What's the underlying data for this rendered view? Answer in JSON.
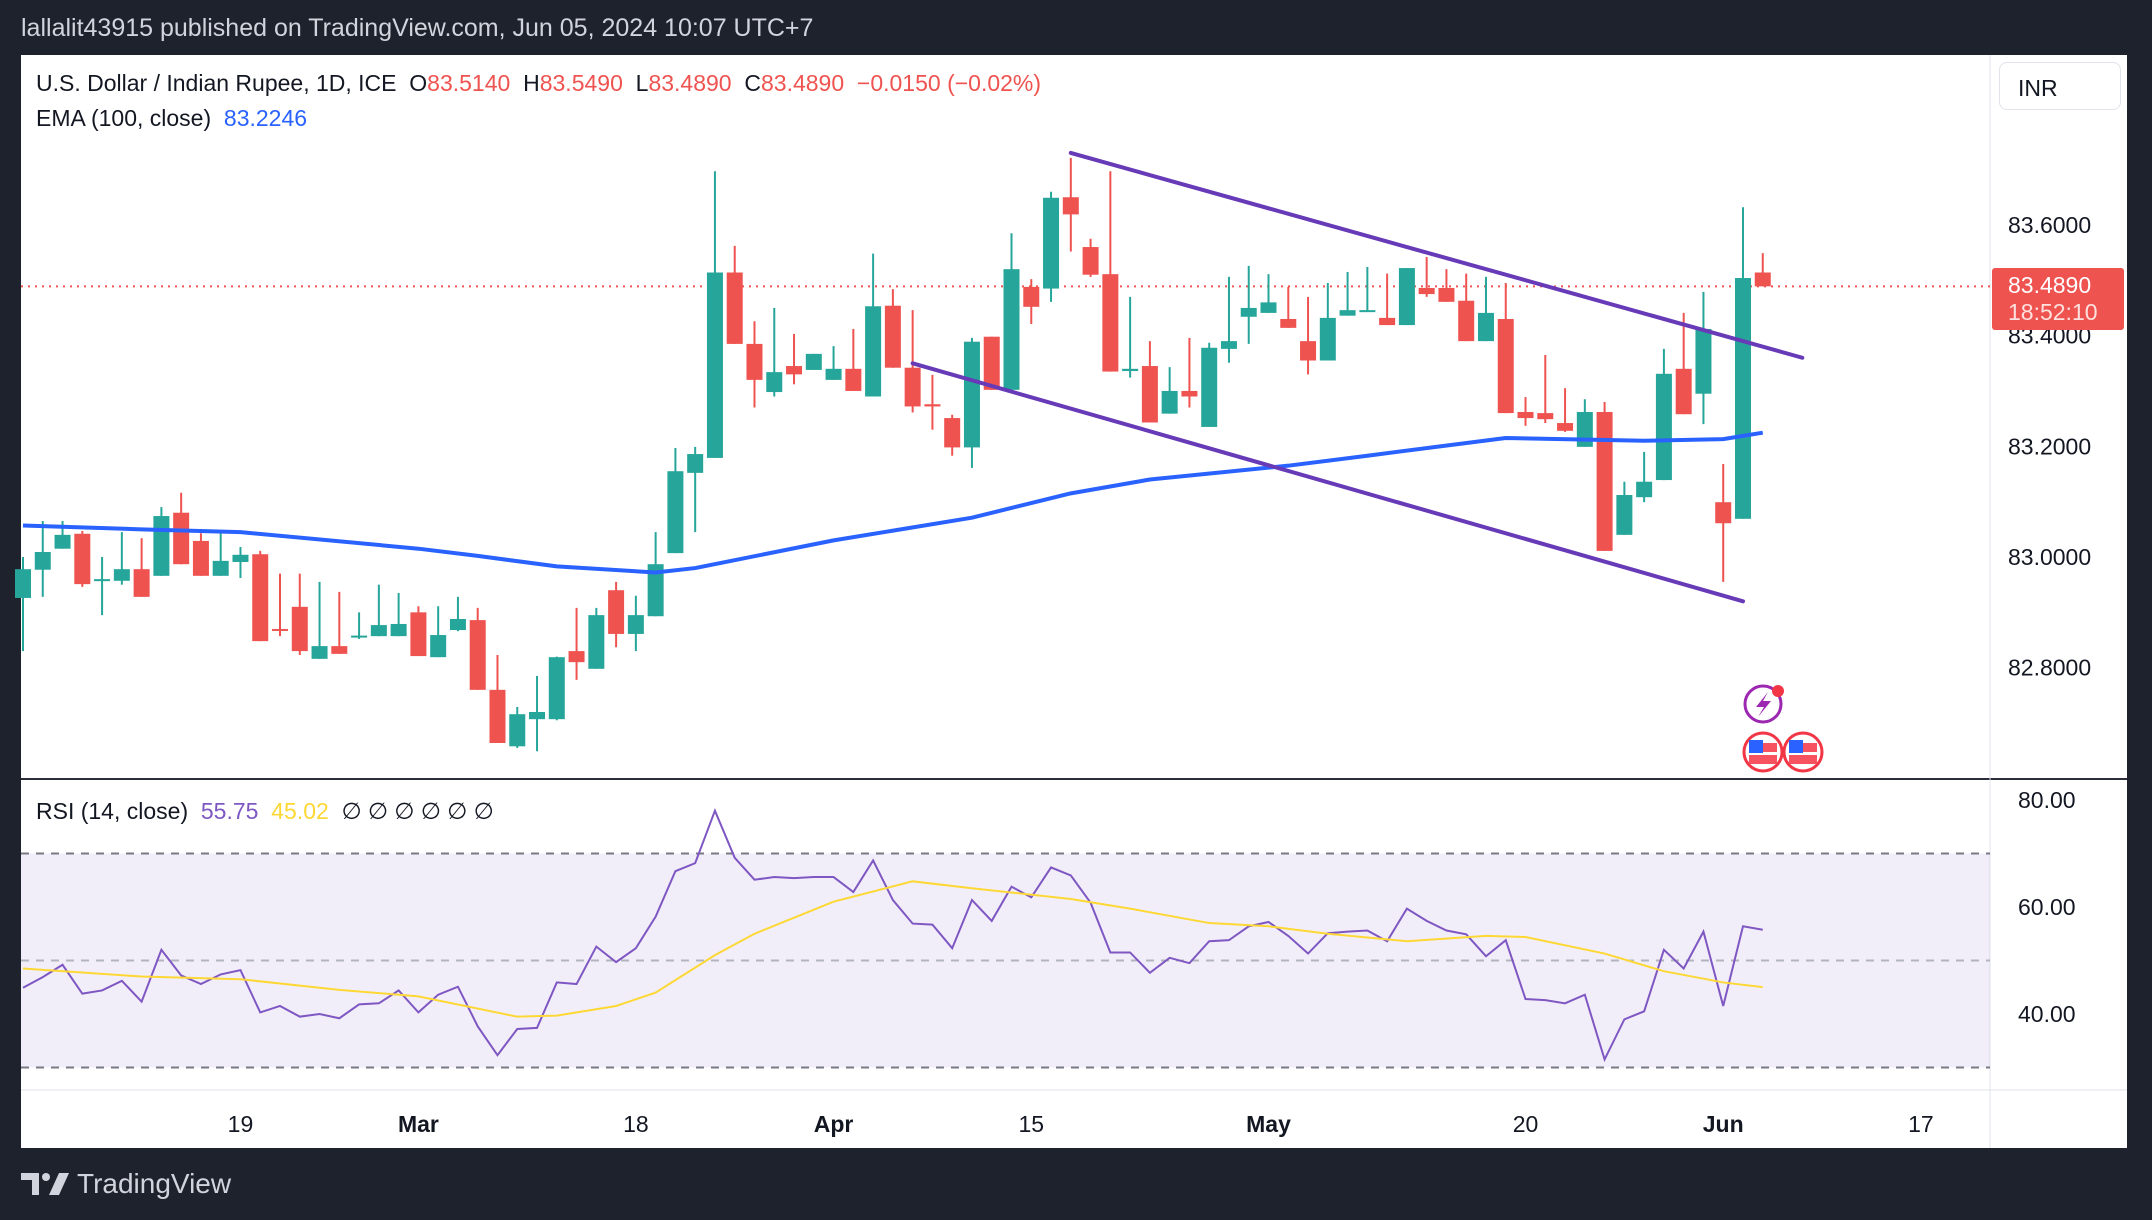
{
  "header": {
    "published": "lallalit43915 published on TradingView.com, Jun 05, 2024 10:07 UTC+7"
  },
  "legend": {
    "symbol": "U.S. Dollar / Indian Rupee, 1D, ICE",
    "o_label": "O",
    "o": "83.5140",
    "h_label": "H",
    "h": "83.5490",
    "l_label": "L",
    "l": "83.4890",
    "c_label": "C",
    "c": "83.4890",
    "change": "−0.0150 (−0.02%)",
    "ema_label": "EMA (100, close)",
    "ema_value": "83.2246",
    "rsi_label": "RSI (14, close)",
    "rsi_value": "55.75",
    "rsi_ma_value": "45.02",
    "rsi_na": "∅ ∅ ∅ ∅ ∅ ∅"
  },
  "currency_button": "INR",
  "price_tag": {
    "price": "83.4890",
    "countdown": "18:52:10"
  },
  "footer": {
    "brand": "TradingView"
  },
  "colors": {
    "up": "#26a69a",
    "down": "#ef5350",
    "ema": "#2962ff",
    "trendline": "#673ab7",
    "rsi": "#7e57c2",
    "rsi_ma": "#fdd835",
    "last_price": "#ef5350"
  },
  "icons": [
    "lightning-event-icon",
    "us-flag-icon",
    "us-flag-icon"
  ],
  "chart_data": {
    "type": "candlestick",
    "last_price": 83.489,
    "price_ticks": [
      "83.6000",
      "83.4000",
      "83.2000",
      "83.0000",
      "82.8000"
    ],
    "price_tick_values": [
      83.6,
      83.4,
      83.2,
      83.0,
      82.8
    ],
    "x_ticks": [
      {
        "label": "19",
        "date": "2024-02-19",
        "bold": false
      },
      {
        "label": "Mar",
        "date": "2024-03-01",
        "bold": true
      },
      {
        "label": "18",
        "date": "2024-03-18",
        "bold": false
      },
      {
        "label": "Apr",
        "date": "2024-04-01",
        "bold": true
      },
      {
        "label": "15",
        "date": "2024-04-15",
        "bold": false
      },
      {
        "label": "May",
        "date": "2024-05-01",
        "bold": true
      },
      {
        "label": "20",
        "date": "2024-05-20",
        "bold": false
      },
      {
        "label": "Jun",
        "date": "2024-06-03",
        "bold": true
      },
      {
        "label": "17",
        "date": "2024-06-17",
        "bold": false
      }
    ],
    "candles_columns": [
      "date",
      "open",
      "high",
      "low",
      "close"
    ],
    "candles": [
      [
        "2024-02-02",
        82.926,
        83.0,
        82.83,
        82.978
      ],
      [
        "2024-02-05",
        82.977,
        83.065,
        82.928,
        83.009
      ],
      [
        "2024-02-06",
        83.015,
        83.065,
        83.015,
        83.04
      ],
      [
        "2024-02-07",
        83.042,
        83.047,
        82.946,
        82.951
      ],
      [
        "2024-02-08",
        82.96,
        83.0,
        82.895,
        82.96
      ],
      [
        "2024-02-09",
        82.957,
        83.045,
        82.95,
        82.978
      ],
      [
        "2024-02-12",
        82.978,
        83.034,
        82.928,
        82.928
      ],
      [
        "2024-02-13",
        82.966,
        83.09,
        82.966,
        83.074
      ],
      [
        "2024-02-14",
        83.08,
        83.116,
        82.987,
        82.987
      ],
      [
        "2024-02-15",
        83.029,
        83.043,
        82.966,
        82.966
      ],
      [
        "2024-02-16",
        82.966,
        83.043,
        82.966,
        82.993
      ],
      [
        "2024-02-19",
        82.991,
        83.018,
        82.962,
        83.004
      ],
      [
        "2024-02-20",
        83.005,
        83.011,
        82.848,
        82.848
      ],
      [
        "2024-02-21",
        82.87,
        82.97,
        82.857,
        82.869
      ],
      [
        "2024-02-22",
        82.91,
        82.97,
        82.823,
        82.83
      ],
      [
        "2024-02-23",
        82.816,
        82.955,
        82.816,
        82.839
      ],
      [
        "2024-02-26",
        82.839,
        82.937,
        82.825,
        82.825
      ],
      [
        "2024-02-27",
        82.856,
        82.9,
        82.852,
        82.858
      ],
      [
        "2024-02-28",
        82.857,
        82.95,
        82.857,
        82.877
      ],
      [
        "2024-02-29",
        82.857,
        82.935,
        82.857,
        82.879
      ],
      [
        "2024-03-01",
        82.9,
        82.911,
        82.821,
        82.821
      ],
      [
        "2024-03-04",
        82.819,
        82.911,
        82.819,
        82.859
      ],
      [
        "2024-03-05",
        82.868,
        82.928,
        82.866,
        82.888
      ],
      [
        "2024-03-06",
        82.886,
        82.908,
        82.76,
        82.76
      ],
      [
        "2024-03-07",
        82.76,
        82.823,
        82.664,
        82.664
      ],
      [
        "2024-03-08",
        82.658,
        82.729,
        82.655,
        82.716
      ],
      [
        "2024-03-11",
        82.707,
        82.785,
        82.649,
        82.72
      ],
      [
        "2024-03-12",
        82.707,
        82.82,
        82.705,
        82.819
      ],
      [
        "2024-03-13",
        82.83,
        82.908,
        82.778,
        82.81
      ],
      [
        "2024-03-14",
        82.798,
        82.908,
        82.798,
        82.895
      ],
      [
        "2024-03-15",
        82.94,
        82.955,
        82.837,
        82.861
      ],
      [
        "2024-03-18",
        82.861,
        82.93,
        82.83,
        82.895
      ],
      [
        "2024-03-19",
        82.893,
        83.045,
        82.893,
        82.987
      ],
      [
        "2024-03-20",
        83.007,
        83.197,
        83.007,
        83.155
      ],
      [
        "2024-03-21",
        83.152,
        83.199,
        83.045,
        83.186
      ],
      [
        "2024-03-22",
        83.179,
        83.697,
        83.179,
        83.514
      ],
      [
        "2024-03-25",
        83.514,
        83.562,
        83.385,
        83.385
      ],
      [
        "2024-03-26",
        83.385,
        83.426,
        83.27,
        83.32
      ],
      [
        "2024-03-27",
        83.298,
        83.45,
        83.29,
        83.334
      ],
      [
        "2024-03-28",
        83.345,
        83.403,
        83.312,
        83.33
      ],
      [
        "2024-03-29",
        83.338,
        83.367,
        83.338,
        83.367
      ],
      [
        "2024-04-01",
        83.32,
        83.381,
        83.32,
        83.34
      ],
      [
        "2024-04-02",
        83.34,
        83.412,
        83.3,
        83.3
      ],
      [
        "2024-04-03",
        83.29,
        83.548,
        83.29,
        83.453
      ],
      [
        "2024-04-04",
        83.454,
        83.484,
        83.342,
        83.342
      ],
      [
        "2024-04-05",
        83.342,
        83.446,
        83.261,
        83.272
      ],
      [
        "2024-04-08",
        83.276,
        83.329,
        83.23,
        83.272
      ],
      [
        "2024-04-09",
        83.251,
        83.257,
        83.183,
        83.198
      ],
      [
        "2024-04-10",
        83.198,
        83.396,
        83.161,
        83.389
      ],
      [
        "2024-04-11",
        83.398,
        83.398,
        83.302,
        83.302
      ],
      [
        "2024-04-12",
        83.302,
        83.585,
        83.302,
        83.52
      ],
      [
        "2024-04-15",
        83.488,
        83.502,
        83.421,
        83.452
      ],
      [
        "2024-04-16",
        83.485,
        83.66,
        83.461,
        83.649
      ],
      [
        "2024-04-17",
        83.65,
        83.721,
        83.552,
        83.619
      ],
      [
        "2024-04-18",
        83.56,
        83.575,
        83.506,
        83.51
      ],
      [
        "2024-04-19",
        83.511,
        83.697,
        83.335,
        83.335
      ],
      [
        "2024-04-22",
        83.336,
        83.47,
        83.324,
        83.34
      ],
      [
        "2024-04-23",
        83.345,
        83.39,
        83.243,
        83.243
      ],
      [
        "2024-04-24",
        83.259,
        83.343,
        83.259,
        83.3
      ],
      [
        "2024-04-25",
        83.3,
        83.396,
        83.27,
        83.29
      ],
      [
        "2024-04-26",
        83.235,
        83.387,
        83.235,
        83.378
      ],
      [
        "2024-04-29",
        83.376,
        83.506,
        83.351,
        83.39
      ],
      [
        "2024-04-30",
        83.434,
        83.526,
        83.385,
        83.45
      ],
      [
        "2024-05-01",
        83.441,
        83.511,
        83.441,
        83.46
      ],
      [
        "2024-05-02",
        83.43,
        83.488,
        83.414,
        83.414
      ],
      [
        "2024-05-03",
        83.39,
        83.47,
        83.33,
        83.355
      ],
      [
        "2024-05-06",
        83.355,
        83.495,
        83.355,
        83.432
      ],
      [
        "2024-05-07",
        83.436,
        83.515,
        83.436,
        83.446
      ],
      [
        "2024-05-08",
        83.443,
        83.524,
        83.443,
        83.446
      ],
      [
        "2024-05-09",
        83.432,
        83.512,
        83.419,
        83.419
      ],
      [
        "2024-05-10",
        83.419,
        83.522,
        83.419,
        83.522
      ],
      [
        "2024-05-13",
        83.486,
        83.542,
        83.47,
        83.475
      ],
      [
        "2024-05-14",
        83.486,
        83.52,
        83.461,
        83.461
      ],
      [
        "2024-05-15",
        83.463,
        83.512,
        83.39,
        83.39
      ],
      [
        "2024-05-16",
        83.39,
        83.506,
        83.39,
        83.441
      ],
      [
        "2024-05-17",
        83.43,
        83.495,
        83.26,
        83.26
      ],
      [
        "2024-05-20",
        83.262,
        83.289,
        83.237,
        83.251
      ],
      [
        "2024-05-21",
        83.26,
        83.365,
        83.242,
        83.249
      ],
      [
        "2024-05-22",
        83.242,
        83.305,
        83.226,
        83.228
      ],
      [
        "2024-05-23",
        83.199,
        83.285,
        83.199,
        83.262
      ],
      [
        "2024-05-24",
        83.262,
        83.28,
        83.011,
        83.011
      ],
      [
        "2024-05-27",
        83.04,
        83.136,
        83.04,
        83.112
      ],
      [
        "2024-05-28",
        83.108,
        83.19,
        83.099,
        83.136
      ],
      [
        "2024-05-29",
        83.139,
        83.376,
        83.139,
        83.331
      ],
      [
        "2024-05-30",
        83.34,
        83.441,
        83.258,
        83.258
      ],
      [
        "2024-05-31",
        83.295,
        83.479,
        83.24,
        83.412
      ],
      [
        "2024-06-03",
        83.099,
        83.168,
        82.955,
        83.061
      ],
      [
        "2024-06-04",
        83.069,
        83.632,
        83.069,
        83.504
      ],
      [
        "2024-06-05",
        83.514,
        83.549,
        83.489,
        83.489
      ]
    ],
    "ema100": [
      [
        "2024-02-02",
        83.057
      ],
      [
        "2024-02-12",
        83.05
      ],
      [
        "2024-02-19",
        83.045
      ],
      [
        "2024-03-01",
        83.015
      ],
      [
        "2024-03-06",
        83.002
      ],
      [
        "2024-03-12",
        82.983
      ],
      [
        "2024-03-19",
        82.972
      ],
      [
        "2024-03-21",
        82.98
      ],
      [
        "2024-04-01",
        83.03
      ],
      [
        "2024-04-10",
        83.071
      ],
      [
        "2024-04-17",
        83.115
      ],
      [
        "2024-04-23",
        83.14
      ],
      [
        "2024-05-02",
        83.165
      ],
      [
        "2024-05-08",
        83.183
      ],
      [
        "2024-05-17",
        83.215
      ],
      [
        "2024-05-28",
        83.21
      ],
      [
        "2024-06-03",
        83.213
      ],
      [
        "2024-06-05",
        83.2246
      ]
    ],
    "trendlines": [
      {
        "from": [
          "2024-04-17",
          83.73
        ],
        "to": [
          "2024-06-07",
          83.36
        ]
      },
      {
        "from": [
          "2024-04-05",
          83.35
        ],
        "to": [
          "2024-06-04",
          82.92
        ]
      }
    ],
    "rsi": {
      "period": 14,
      "ticks": [
        "80.00",
        "60.00",
        "40.00"
      ],
      "tick_values": [
        80,
        60,
        40
      ],
      "bands": [
        70,
        50,
        30
      ],
      "values": [
        44.9,
        46.9,
        49.2,
        43.8,
        44.4,
        46.2,
        42.3,
        52,
        47.2,
        45.6,
        47.4,
        48.2,
        40.3,
        41.5,
        39.5,
        40,
        39.2,
        41.8,
        42,
        44.4,
        40.3,
        43.6,
        45.1,
        37.7,
        32.3,
        37.2,
        37.4,
        45.9,
        45.6,
        52.6,
        49.7,
        52.3,
        58.2,
        66.7,
        68.2,
        78,
        69.2,
        65.1,
        65.6,
        65.4,
        65.6,
        65.6,
        62.8,
        68.7,
        61.3,
        56.9,
        56.7,
        52.3,
        61.3,
        57.4,
        63.8,
        61.8,
        67.4,
        65.9,
        60.8,
        51.5,
        51.5,
        47.7,
        50.5,
        49.5,
        53.6,
        53.8,
        56.4,
        57.2,
        54.6,
        51.3,
        55.1,
        55.4,
        55.6,
        53.6,
        59.7,
        57.4,
        55.6,
        54.9,
        50.8,
        53.8,
        42.8,
        42.6,
        42,
        43.6,
        31.5,
        39,
        40.5,
        52,
        48.5,
        55.4,
        41.5,
        56.4,
        55.75
      ],
      "ma": [
        [
          "2024-02-02",
          48.5
        ],
        [
          "2024-02-12",
          47
        ],
        [
          "2024-02-19",
          46.5
        ],
        [
          "2024-02-26",
          44.5
        ],
        [
          "2024-03-01",
          43.3
        ],
        [
          "2024-03-08",
          39.5
        ],
        [
          "2024-03-12",
          39.7
        ],
        [
          "2024-03-15",
          41.5
        ],
        [
          "2024-03-19",
          44
        ],
        [
          "2024-03-22",
          51
        ],
        [
          "2024-03-26",
          55
        ],
        [
          "2024-04-01",
          61
        ],
        [
          "2024-04-05",
          64.8
        ],
        [
          "2024-04-10",
          63.5
        ],
        [
          "2024-04-17",
          61.5
        ],
        [
          "2024-04-22",
          59.7
        ],
        [
          "2024-04-26",
          57
        ],
        [
          "2024-05-01",
          56.4
        ],
        [
          "2024-05-06",
          55
        ],
        [
          "2024-05-10",
          53.6
        ],
        [
          "2024-05-16",
          54.6
        ],
        [
          "2024-05-20",
          54.4
        ],
        [
          "2024-05-24",
          51.3
        ],
        [
          "2024-05-29",
          48
        ],
        [
          "2024-06-03",
          45.9
        ],
        [
          "2024-06-05",
          45.02
        ]
      ]
    }
  }
}
